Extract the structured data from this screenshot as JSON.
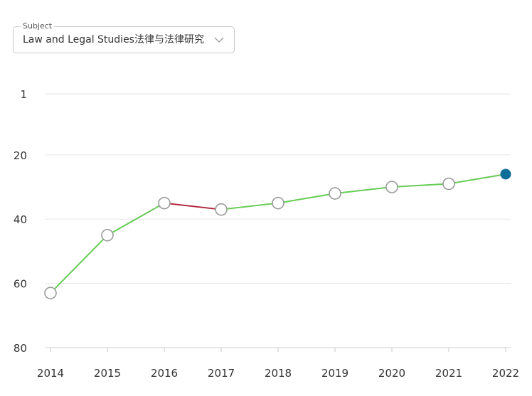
{
  "subject_select": {
    "label": "Subject",
    "value": "Law and Legal Studies法律与法律研究",
    "icon": "chevron-down-icon"
  },
  "colors": {
    "rise": "#66cc55",
    "fall": "#b5283e",
    "current_point": "#0b6e99",
    "marker_stroke": "#9a9a9a",
    "gridline": "#e6e6e6",
    "tick_text": "#333333"
  },
  "chart_data": {
    "type": "line",
    "x": [
      2014,
      2015,
      2016,
      2017,
      2018,
      2019,
      2020,
      2021,
      2022
    ],
    "series": [
      {
        "values": [
          63,
          45,
          35,
          37,
          35,
          32,
          30,
          29,
          26
        ]
      }
    ],
    "y_ticks": [
      1,
      20,
      40,
      60,
      80
    ],
    "ylim": [
      1,
      80
    ],
    "y_inverted": true,
    "grid": true,
    "title": "",
    "xlabel": "",
    "ylabel": ""
  }
}
